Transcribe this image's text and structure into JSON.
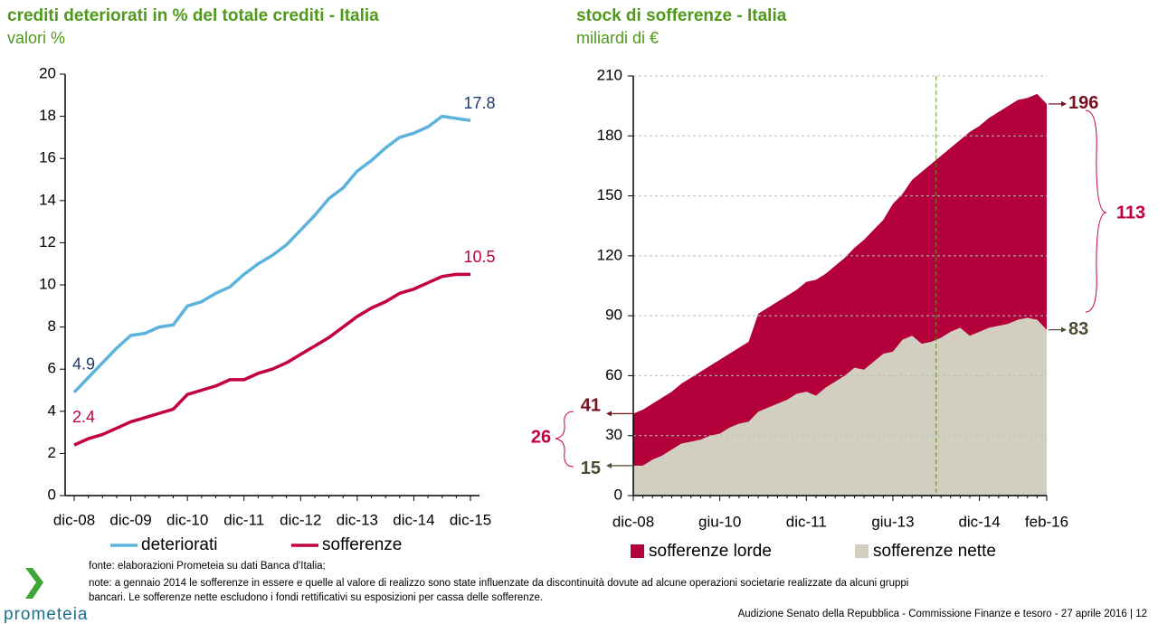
{
  "chart_data": [
    {
      "type": "line",
      "title": "crediti deteriorati in % del totale crediti - Italia",
      "subtitle": "valori %",
      "categories": [
        "dic-08",
        null,
        null,
        null,
        "dic-09",
        null,
        null,
        null,
        "dic-10",
        null,
        null,
        null,
        "dic-11",
        null,
        null,
        null,
        "dic-12",
        null,
        null,
        null,
        "dic-13",
        null,
        null,
        null,
        "dic-14",
        null,
        null,
        null,
        "dic-15"
      ],
      "series": [
        {
          "name": "deteriorati",
          "color": "#5bb3dc",
          "label_color": "#1f3a6e",
          "values": [
            4.9,
            5.6,
            6.3,
            7.0,
            7.6,
            7.7,
            8.0,
            8.1,
            9.0,
            9.2,
            9.6,
            9.9,
            10.5,
            11.0,
            11.4,
            11.9,
            12.6,
            13.3,
            14.1,
            14.6,
            15.4,
            15.9,
            16.5,
            17.0,
            17.2,
            17.5,
            18.0,
            17.9,
            17.8
          ]
        },
        {
          "name": "sofferenze",
          "color": "#c2003d",
          "label_color": "#c2003d",
          "values": [
            2.4,
            2.7,
            2.9,
            3.2,
            3.5,
            3.7,
            3.9,
            4.1,
            4.8,
            5.0,
            5.2,
            5.5,
            5.5,
            5.8,
            6.0,
            6.3,
            6.7,
            7.1,
            7.5,
            8.0,
            8.5,
            8.9,
            9.2,
            9.6,
            9.8,
            10.1,
            10.4,
            10.5,
            10.5
          ]
        }
      ],
      "ylim": [
        0,
        20
      ],
      "yticks": [
        0,
        2,
        4,
        6,
        8,
        10,
        12,
        14,
        16,
        18,
        20
      ],
      "grid": false
    },
    {
      "type": "area",
      "title": "stock di sofferenze - Italia",
      "subtitle": "miliardi di €",
      "categories": [
        "dic-08",
        null,
        null,
        null,
        null,
        null,
        null,
        null,
        null,
        "giu-10",
        null,
        null,
        null,
        null,
        null,
        null,
        null,
        null,
        "dic-11",
        null,
        null,
        null,
        null,
        null,
        null,
        null,
        null,
        "giu-13",
        null,
        null,
        null,
        null,
        null,
        null,
        null,
        null,
        "dic-14",
        null,
        null,
        null,
        null,
        null,
        null,
        "feb-16"
      ],
      "series": [
        {
          "name": "sofferenze lorde",
          "color": "#b4003a",
          "label_color": "#7a0f1e",
          "values": [
            41,
            43,
            46,
            49,
            52,
            56,
            59,
            62,
            65,
            68,
            71,
            74,
            77,
            91,
            94,
            97,
            100,
            103,
            107,
            108,
            111,
            115,
            119,
            124,
            128,
            133,
            138,
            146,
            151,
            158,
            162,
            166,
            170,
            174,
            178,
            182,
            185,
            189,
            192,
            195,
            198,
            199,
            201,
            196
          ]
        },
        {
          "name": "sofferenze nette",
          "color": "#d3cfc0",
          "label_color": "#4f4a33",
          "values": [
            15,
            15,
            18,
            20,
            23,
            26,
            27,
            28,
            30,
            31,
            34,
            36,
            37,
            42,
            44,
            46,
            48,
            51,
            52,
            50,
            54,
            57,
            60,
            64,
            63,
            67,
            71,
            72,
            78,
            80,
            76,
            77,
            79,
            82,
            84,
            80,
            82,
            84,
            85,
            86,
            88,
            89,
            88,
            83
          ]
        }
      ],
      "annotations": [
        26,
        113
      ],
      "ylim": [
        0,
        210
      ],
      "yticks": [
        0,
        30,
        60,
        90,
        120,
        150,
        180,
        210
      ],
      "grid": true
    }
  ],
  "footer": {
    "source": "fonte: elaborazioni Prometeia su dati Banca d'Italia;",
    "notes": [
      "note: a gennaio 2014 le sofferenze in essere e quelle al valore di realizzo sono state influenzate da discontinuità dovute ad alcune operazioni societarie realizzate da alcuni gruppi",
      "bancari. Le sofferenze nette escludono i fondi rettificativi su esposizioni per cassa delle sofferenze."
    ],
    "logo": "prometeia",
    "event": "Audizione Senato della Repubblica - Commissione Finanze e tesoro - 27 aprile 2016 | 12"
  }
}
